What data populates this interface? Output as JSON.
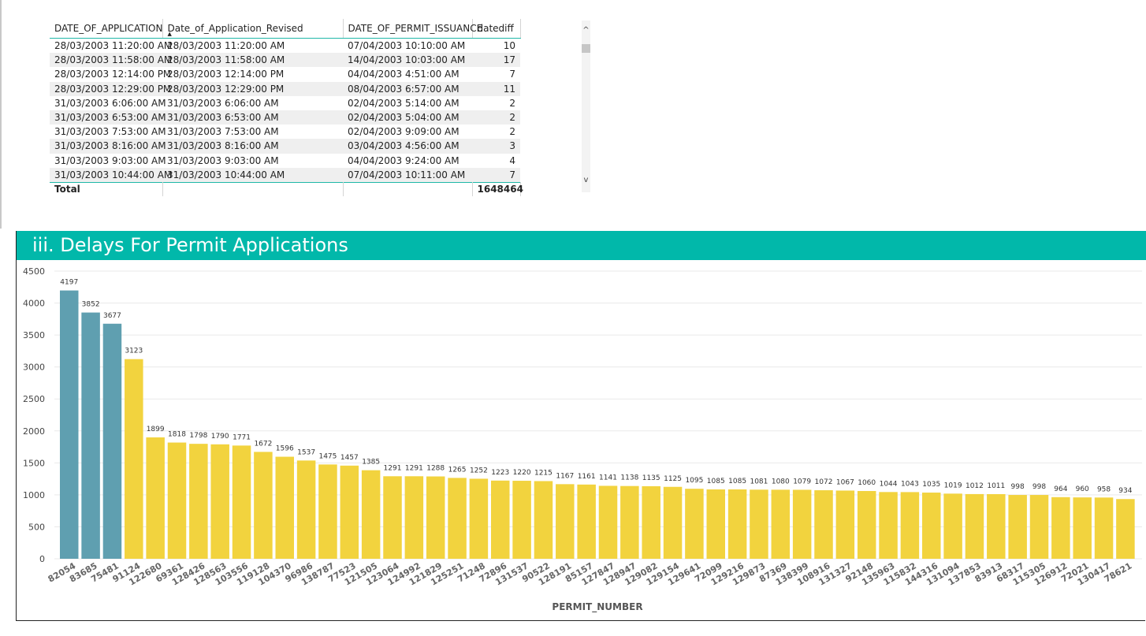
{
  "table": {
    "columns": [
      "DATE_OF_APPLICATION",
      "Date_of_Application_Revised",
      "DATE_OF_PERMIT_ISSUANCE",
      "datediff"
    ],
    "rows": [
      [
        "28/03/2003 11:20:00 AM",
        "28/03/2003 11:20:00 AM",
        "07/04/2003 10:10:00 AM",
        "10"
      ],
      [
        "28/03/2003 11:58:00 AM",
        "28/03/2003 11:58:00 AM",
        "14/04/2003 10:03:00 AM",
        "17"
      ],
      [
        "28/03/2003 12:14:00 PM",
        "28/03/2003 12:14:00 PM",
        "04/04/2003 4:51:00 AM",
        "7"
      ],
      [
        "28/03/2003 12:29:00 PM",
        "28/03/2003 12:29:00 PM",
        "08/04/2003 6:57:00 AM",
        "11"
      ],
      [
        "31/03/2003 6:06:00 AM",
        "31/03/2003 6:06:00 AM",
        "02/04/2003 5:14:00 AM",
        "2"
      ],
      [
        "31/03/2003 6:53:00 AM",
        "31/03/2003 6:53:00 AM",
        "02/04/2003 5:04:00 AM",
        "2"
      ],
      [
        "31/03/2003 7:53:00 AM",
        "31/03/2003 7:53:00 AM",
        "02/04/2003 9:09:00 AM",
        "2"
      ],
      [
        "31/03/2003 8:16:00 AM",
        "31/03/2003 8:16:00 AM",
        "03/04/2003 4:56:00 AM",
        "3"
      ],
      [
        "31/03/2003 9:03:00 AM",
        "31/03/2003 9:03:00 AM",
        "04/04/2003 9:24:00 AM",
        "4"
      ],
      [
        "31/03/2003 10:44:00 AM",
        "31/03/2003 10:44:00 AM",
        "07/04/2003 10:11:00 AM",
        "7"
      ]
    ],
    "total_label": "Total",
    "total_value": "1648464",
    "scroll_up": "^",
    "scroll_down": "v"
  },
  "section": {
    "title": "iii. Delays For Permit Applications"
  },
  "colors": {
    "teal": "#01b8aa",
    "highlight": "#5f9fb0",
    "bar": "#f2d33e"
  },
  "chart_data": {
    "type": "bar",
    "xlabel": "PERMIT_NUMBER",
    "ylabel": "",
    "ylim": [
      0,
      4500
    ],
    "yticks": [
      0,
      500,
      1000,
      1500,
      2000,
      2500,
      3000,
      3500,
      4000,
      4500
    ],
    "grid": true,
    "highlighted_count": 3,
    "categories": [
      "82054",
      "83685",
      "75481",
      "91124",
      "122680",
      "69361",
      "128426",
      "128563",
      "103556",
      "119128",
      "104370",
      "96986",
      "138787",
      "77523",
      "121505",
      "123064",
      "124992",
      "121829",
      "125251",
      "71248",
      "72896",
      "131537",
      "90522",
      "128191",
      "85157",
      "127847",
      "128947",
      "129082",
      "129154",
      "129641",
      "72099",
      "129216",
      "129873",
      "87369",
      "138399",
      "108916",
      "131327",
      "92148",
      "135963",
      "115832",
      "144316",
      "131094",
      "137853",
      "83913",
      "68317",
      "115305",
      "126912",
      "72021",
      "130417",
      "78621"
    ],
    "values": [
      4197,
      3852,
      3677,
      3123,
      1899,
      1818,
      1798,
      1790,
      1771,
      1672,
      1596,
      1537,
      1475,
      1457,
      1385,
      1291,
      1291,
      1288,
      1265,
      1252,
      1223,
      1220,
      1215,
      1167,
      1161,
      1141,
      1138,
      1135,
      1125,
      1095,
      1085,
      1085,
      1081,
      1080,
      1079,
      1072,
      1067,
      1060,
      1044,
      1043,
      1035,
      1019,
      1012,
      1011,
      998,
      998,
      964,
      960,
      958,
      934
    ]
  }
}
